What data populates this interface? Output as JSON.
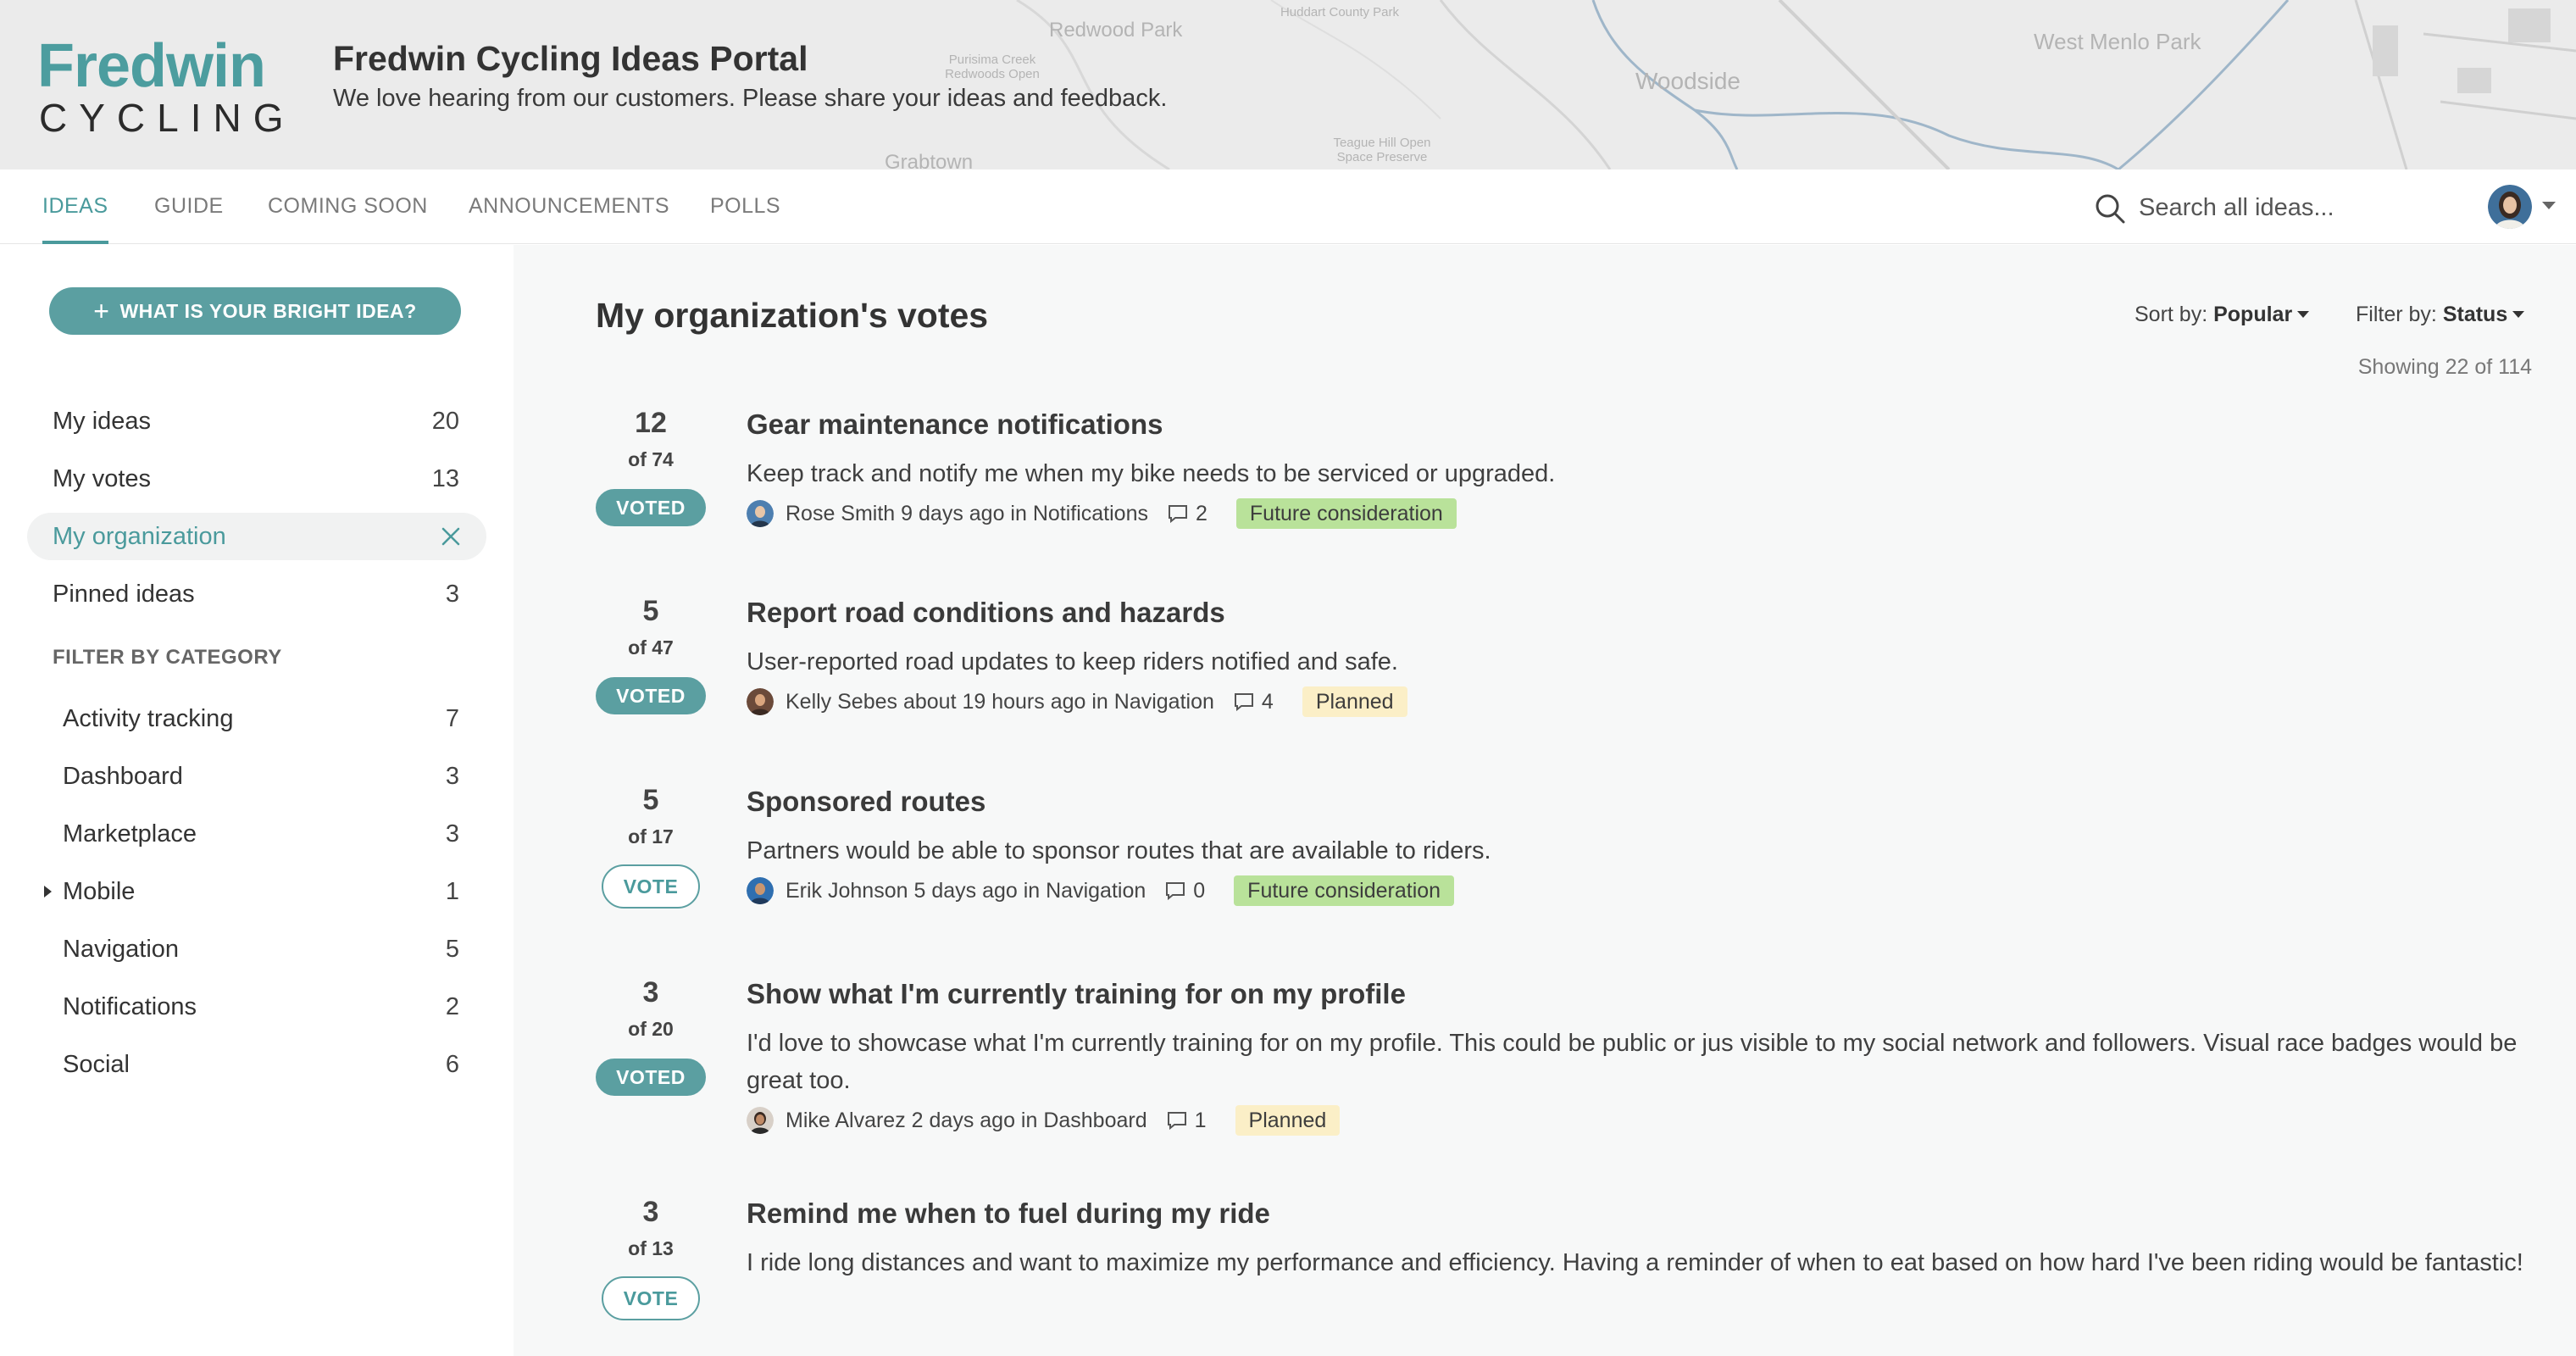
{
  "header": {
    "logo_top": "Fredwin",
    "logo_bottom": "CYCLING",
    "title": "Fredwin Cycling Ideas Portal",
    "subtitle": "We love hearing from our customers. Please share your ideas and feedback.",
    "map_labels": [
      "Redwood Park",
      "Huddart County Park",
      "Purisima Creek Redwoods Open",
      "Woodside",
      "West Menlo Park",
      "Teague Hill Open Space Preserve",
      "Grabtown"
    ]
  },
  "nav": {
    "tabs": [
      {
        "label": "IDEAS",
        "active": true
      },
      {
        "label": "GUIDE"
      },
      {
        "label": "COMING SOON"
      },
      {
        "label": "ANNOUNCEMENTS"
      },
      {
        "label": "POLLS"
      }
    ],
    "search_placeholder": "Search all ideas..."
  },
  "sidebar": {
    "idea_button": "WHAT IS YOUR BRIGHT IDEA?",
    "items": [
      {
        "label": "My ideas",
        "count": "20"
      },
      {
        "label": "My votes",
        "count": "13"
      },
      {
        "label": "My organization",
        "selected": true
      },
      {
        "label": "Pinned ideas",
        "count": "3"
      }
    ],
    "filter_heading": "FILTER BY CATEGORY",
    "categories": [
      {
        "label": "Activity tracking",
        "count": "7"
      },
      {
        "label": "Dashboard",
        "count": "3"
      },
      {
        "label": "Marketplace",
        "count": "3"
      },
      {
        "label": "Mobile",
        "count": "1",
        "expandable": true
      },
      {
        "label": "Navigation",
        "count": "5"
      },
      {
        "label": "Notifications",
        "count": "2"
      },
      {
        "label": "Social",
        "count": "6"
      }
    ]
  },
  "main": {
    "title": "My organization's votes",
    "sort_label": "Sort by:",
    "sort_value": "Popular",
    "filter_label": "Filter by:",
    "filter_value": "Status",
    "showing": "Showing 22 of 114",
    "ideas": [
      {
        "votes": "12",
        "total": "of 74",
        "vote_label": "VOTED",
        "voted": true,
        "title": "Gear maintenance notifications",
        "description": "Keep track and notify me when my bike needs to be serviced or upgraded.",
        "meta": "Rose Smith 9 days ago in Notifications",
        "comments": "2",
        "status": "Future consideration",
        "status_color": "#b9e29a"
      },
      {
        "votes": "5",
        "total": "of 47",
        "vote_label": "VOTED",
        "voted": true,
        "title": "Report road conditions and hazards",
        "description": "User-reported road updates to keep riders notified and safe.",
        "meta": "Kelly Sebes about 19 hours ago in Navigation",
        "comments": "4",
        "status": "Planned",
        "status_color": "#fbefc7"
      },
      {
        "votes": "5",
        "total": "of 17",
        "vote_label": "VOTE",
        "voted": false,
        "title": "Sponsored routes",
        "description": "Partners would be able to sponsor routes that are available to riders.",
        "meta": "Erik Johnson 5 days ago in Navigation",
        "comments": "0",
        "status": "Future consideration",
        "status_color": "#b9e29a"
      },
      {
        "votes": "3",
        "total": "of 20",
        "vote_label": "VOTED",
        "voted": true,
        "title": "Show what I'm currently training for on my profile",
        "description": "I'd love to showcase what I'm currently training for on my profile. This could be public or jus visible to my social network and followers. Visual race badges would be great too.",
        "meta": "Mike Alvarez 2 days ago in Dashboard",
        "comments": "1",
        "status": "Planned",
        "status_color": "#fbefc7"
      },
      {
        "votes": "3",
        "total": "of 13",
        "vote_label": "VOTE",
        "voted": false,
        "title": "Remind me when to fuel during my ride",
        "description": "I ride long distances and want to maximize my performance and efficiency. Having a reminder of when to eat based on how hard I've been riding would be fantastic!"
      }
    ]
  }
}
